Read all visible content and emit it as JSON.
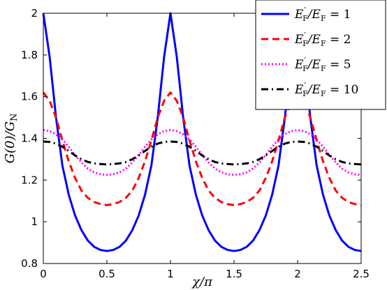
{
  "chart_data": {
    "type": "line",
    "xlabel": "χ/π",
    "ylabel": "G(0)/G_N",
    "xlim": [
      0,
      2.5
    ],
    "ylim": [
      0.8,
      2
    ],
    "x_ticks": [
      0,
      0.5,
      1,
      1.5,
      2,
      2.5
    ],
    "y_ticks": [
      0.8,
      1,
      1.2,
      1.4,
      1.6,
      1.8,
      2
    ],
    "x_tick_labels": [
      "0",
      "0.5",
      "1",
      "1.5",
      "2",
      "2.5"
    ],
    "y_tick_labels": [
      "0.8",
      "1",
      "1.2",
      "1.4",
      "1.6",
      "1.8",
      "2"
    ],
    "grid": false,
    "legend_position": "top-right",
    "series": [
      {
        "name": "E′F/EF = 1",
        "color": "#0000ff",
        "line_style": "solid",
        "x": [
          0,
          0.05,
          0.1,
          0.15,
          0.2,
          0.25,
          0.3,
          0.35,
          0.4,
          0.45,
          0.5,
          0.55,
          0.6,
          0.65,
          0.7,
          0.75,
          0.8,
          0.85,
          0.9,
          0.95,
          1.0,
          1.05,
          1.1,
          1.15,
          1.2,
          1.25,
          1.3,
          1.35,
          1.4,
          1.45,
          1.5,
          1.55,
          1.6,
          1.65,
          1.7,
          1.75,
          1.8,
          1.85,
          1.9,
          1.95,
          2.0,
          2.05,
          2.1,
          2.15,
          2.2,
          2.25,
          2.3,
          2.35,
          2.4,
          2.45,
          2.5
        ],
        "y": [
          2.0,
          1.79,
          1.5,
          1.27,
          1.13,
          1.03,
          0.96,
          0.91,
          0.88,
          0.865,
          0.86,
          0.865,
          0.88,
          0.91,
          0.96,
          1.03,
          1.13,
          1.27,
          1.5,
          1.79,
          2.0,
          1.79,
          1.5,
          1.27,
          1.13,
          1.03,
          0.96,
          0.91,
          0.88,
          0.865,
          0.86,
          0.865,
          0.88,
          0.91,
          0.96,
          1.03,
          1.13,
          1.27,
          1.5,
          1.79,
          2.0,
          1.79,
          1.5,
          1.27,
          1.13,
          1.03,
          0.96,
          0.91,
          0.88,
          0.865,
          0.86
        ]
      },
      {
        "name": "E′F/EF = 2",
        "color": "#ff0000",
        "line_style": "dashed",
        "x": [
          0,
          0.05,
          0.1,
          0.15,
          0.2,
          0.25,
          0.3,
          0.35,
          0.4,
          0.45,
          0.5,
          0.55,
          0.6,
          0.65,
          0.7,
          0.75,
          0.8,
          0.85,
          0.9,
          0.95,
          1.0,
          1.05,
          1.1,
          1.15,
          1.2,
          1.25,
          1.3,
          1.35,
          1.4,
          1.45,
          1.5,
          1.55,
          1.6,
          1.65,
          1.7,
          1.75,
          1.8,
          1.85,
          1.9,
          1.95,
          2.0,
          2.05,
          2.1,
          2.15,
          2.2,
          2.25,
          2.3,
          2.35,
          2.4,
          2.45,
          2.5
        ],
        "y": [
          1.62,
          1.58,
          1.5,
          1.39,
          1.29,
          1.21,
          1.15,
          1.115,
          1.095,
          1.085,
          1.08,
          1.085,
          1.095,
          1.115,
          1.15,
          1.21,
          1.29,
          1.39,
          1.5,
          1.58,
          1.62,
          1.58,
          1.5,
          1.39,
          1.29,
          1.21,
          1.15,
          1.115,
          1.095,
          1.085,
          1.08,
          1.085,
          1.095,
          1.115,
          1.15,
          1.21,
          1.29,
          1.39,
          1.5,
          1.58,
          1.62,
          1.58,
          1.5,
          1.39,
          1.29,
          1.21,
          1.15,
          1.115,
          1.095,
          1.085,
          1.08
        ]
      },
      {
        "name": "E′F/EF = 5",
        "color": "#ff00ff",
        "line_style": "dotted",
        "x": [
          0,
          0.05,
          0.1,
          0.15,
          0.2,
          0.25,
          0.3,
          0.35,
          0.4,
          0.45,
          0.5,
          0.55,
          0.6,
          0.65,
          0.7,
          0.75,
          0.8,
          0.85,
          0.9,
          0.95,
          1.0,
          1.05,
          1.1,
          1.15,
          1.2,
          1.25,
          1.3,
          1.35,
          1.4,
          1.45,
          1.5,
          1.55,
          1.6,
          1.65,
          1.7,
          1.75,
          1.8,
          1.85,
          1.9,
          1.95,
          2.0,
          2.05,
          2.1,
          2.15,
          2.2,
          2.25,
          2.3,
          2.35,
          2.4,
          2.45,
          2.5
        ],
        "y": [
          1.44,
          1.435,
          1.42,
          1.395,
          1.36,
          1.32,
          1.285,
          1.255,
          1.237,
          1.228,
          1.225,
          1.228,
          1.237,
          1.255,
          1.285,
          1.32,
          1.36,
          1.395,
          1.42,
          1.435,
          1.44,
          1.435,
          1.42,
          1.395,
          1.36,
          1.32,
          1.285,
          1.255,
          1.237,
          1.228,
          1.225,
          1.228,
          1.237,
          1.255,
          1.285,
          1.32,
          1.36,
          1.395,
          1.42,
          1.435,
          1.44,
          1.435,
          1.42,
          1.395,
          1.36,
          1.32,
          1.285,
          1.255,
          1.237,
          1.228,
          1.225
        ]
      },
      {
        "name": "E′F/EF = 10",
        "color": "#000000",
        "line_style": "dash-dot",
        "x": [
          0,
          0.05,
          0.1,
          0.15,
          0.2,
          0.25,
          0.3,
          0.35,
          0.4,
          0.45,
          0.5,
          0.55,
          0.6,
          0.65,
          0.7,
          0.75,
          0.8,
          0.85,
          0.9,
          0.95,
          1.0,
          1.05,
          1.1,
          1.15,
          1.2,
          1.25,
          1.3,
          1.35,
          1.4,
          1.45,
          1.5,
          1.55,
          1.6,
          1.65,
          1.7,
          1.75,
          1.8,
          1.85,
          1.9,
          1.95,
          2.0,
          2.05,
          2.1,
          2.15,
          2.2,
          2.25,
          2.3,
          2.35,
          2.4,
          2.45,
          2.5
        ],
        "y": [
          1.385,
          1.383,
          1.375,
          1.36,
          1.34,
          1.318,
          1.3,
          1.287,
          1.28,
          1.277,
          1.275,
          1.277,
          1.28,
          1.287,
          1.3,
          1.318,
          1.34,
          1.36,
          1.375,
          1.383,
          1.385,
          1.383,
          1.375,
          1.36,
          1.34,
          1.318,
          1.3,
          1.287,
          1.28,
          1.277,
          1.275,
          1.277,
          1.28,
          1.287,
          1.3,
          1.318,
          1.34,
          1.36,
          1.375,
          1.383,
          1.385,
          1.383,
          1.375,
          1.36,
          1.34,
          1.318,
          1.3,
          1.287,
          1.28,
          1.277,
          1.275
        ]
      }
    ]
  },
  "legend": {
    "entries": [
      {
        "prefix": "E",
        "sup": "′",
        "sub": "F",
        "mid": "/E",
        "sub2": "F",
        "eq": " = 1"
      },
      {
        "prefix": "E",
        "sup": "′",
        "sub": "F",
        "mid": "/E",
        "sub2": "F",
        "eq": " = 2"
      },
      {
        "prefix": "E",
        "sup": "′",
        "sub": "F",
        "mid": "/E",
        "sub2": "F",
        "eq": " = 5"
      },
      {
        "prefix": "E",
        "sup": "′",
        "sub": "F",
        "mid": "/E",
        "sub2": "F",
        "eq": " = 10"
      }
    ]
  },
  "ylabel_parts": {
    "main": "G(0)/G",
    "sub": "N"
  }
}
